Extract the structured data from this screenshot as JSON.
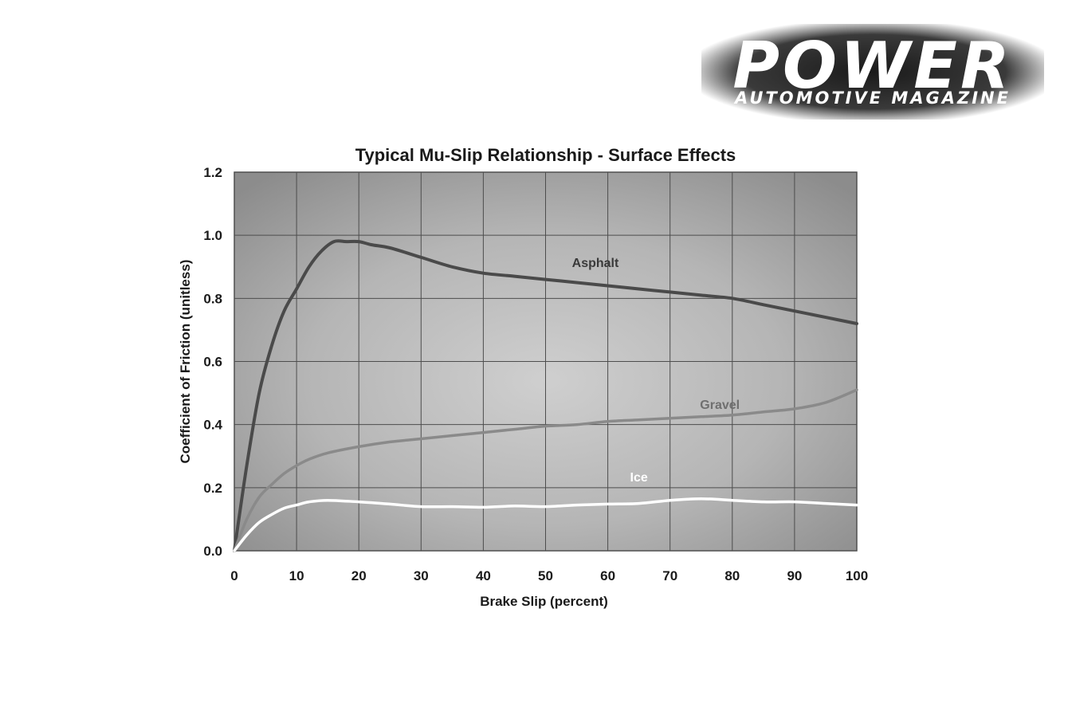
{
  "logo": {
    "main": "POWER",
    "sub": "AUTOMOTIVE MAGAZINE"
  },
  "chart_data": {
    "type": "line",
    "title": "Typical Mu-Slip Relationship - Surface Effects",
    "xlabel": "Brake Slip (percent)",
    "ylabel": "Coefficient of Friction (unitless)",
    "xlim": [
      0,
      100
    ],
    "ylim": [
      0,
      1.2
    ],
    "xticks": [
      0,
      10,
      20,
      30,
      40,
      50,
      60,
      70,
      80,
      90,
      100
    ],
    "yticks": [
      "0.0",
      "0.2",
      "0.4",
      "0.6",
      "0.8",
      "1.0",
      "1.2"
    ],
    "grid": true,
    "series": [
      {
        "name": "Asphalt",
        "color": "#4a4a4a",
        "x": [
          0,
          2,
          4,
          6,
          8,
          10,
          12,
          14,
          16,
          18,
          20,
          22,
          25,
          30,
          35,
          40,
          45,
          50,
          55,
          60,
          65,
          70,
          75,
          80,
          85,
          90,
          95,
          100
        ],
        "y": [
          0.0,
          0.27,
          0.5,
          0.65,
          0.76,
          0.83,
          0.9,
          0.95,
          0.98,
          0.98,
          0.98,
          0.97,
          0.96,
          0.93,
          0.9,
          0.88,
          0.87,
          0.86,
          0.85,
          0.84,
          0.83,
          0.82,
          0.81,
          0.8,
          0.78,
          0.76,
          0.74,
          0.72
        ]
      },
      {
        "name": "Gravel",
        "color": "#8a8a8a",
        "x": [
          0,
          2,
          4,
          6,
          8,
          10,
          12,
          15,
          20,
          25,
          30,
          35,
          40,
          45,
          50,
          55,
          60,
          65,
          70,
          75,
          80,
          85,
          90,
          95,
          100
        ],
        "y": [
          0.0,
          0.1,
          0.17,
          0.21,
          0.245,
          0.27,
          0.29,
          0.31,
          0.33,
          0.345,
          0.355,
          0.365,
          0.375,
          0.385,
          0.395,
          0.4,
          0.41,
          0.415,
          0.42,
          0.425,
          0.43,
          0.44,
          0.45,
          0.47,
          0.51
        ]
      },
      {
        "name": "Ice",
        "color": "#ffffff",
        "x": [
          0,
          2,
          4,
          6,
          8,
          10,
          12,
          15,
          20,
          25,
          30,
          35,
          40,
          45,
          50,
          55,
          60,
          65,
          70,
          75,
          80,
          85,
          90,
          95,
          100
        ],
        "y": [
          0.0,
          0.05,
          0.09,
          0.115,
          0.135,
          0.145,
          0.155,
          0.16,
          0.155,
          0.148,
          0.14,
          0.14,
          0.138,
          0.142,
          0.14,
          0.145,
          0.148,
          0.15,
          0.16,
          0.165,
          0.16,
          0.155,
          0.155,
          0.15,
          0.145
        ]
      }
    ]
  }
}
